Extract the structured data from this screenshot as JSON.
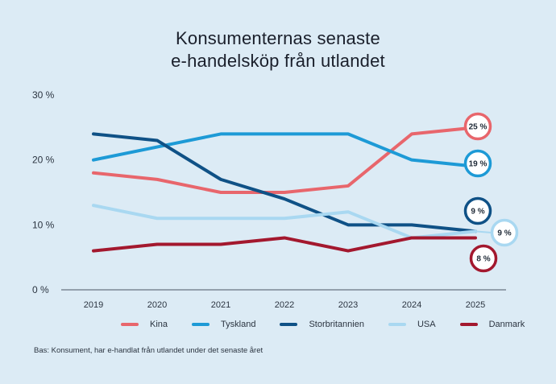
{
  "title_line1": "Konsumenternas senaste",
  "title_line2": "e-handelsköp från utlandet",
  "footnote": "Bas: Konsument, har e-handlat från utlandet under det senaste året",
  "chart_data": {
    "type": "line",
    "title": "Konsumenternas senaste e-handelsköp från utlandet",
    "x": [
      "2019",
      "2020",
      "2021",
      "2022",
      "2023",
      "2024",
      "2025"
    ],
    "y_ticks": [
      "0 %",
      "10 %",
      "20 %",
      "30 %"
    ],
    "ylim": [
      0,
      30
    ],
    "grid": false,
    "legend_position": "bottom",
    "series": [
      {
        "name": "Kina",
        "color": "#e8666c",
        "values": [
          18,
          17,
          15,
          15,
          16,
          24,
          25
        ],
        "end_label": "25 %"
      },
      {
        "name": "Tyskland",
        "color": "#1d9ad6",
        "values": [
          20,
          22,
          24,
          24,
          24,
          20,
          19
        ],
        "end_label": "19 %"
      },
      {
        "name": "Storbritannien",
        "color": "#0f5186",
        "values": [
          24,
          23,
          17,
          14,
          10,
          10,
          9
        ],
        "end_label": "9 %"
      },
      {
        "name": "USA",
        "color": "#a9d8f1",
        "values": [
          13,
          11,
          11,
          11,
          12,
          8,
          9
        ],
        "end_label": "9 %"
      },
      {
        "name": "Danmark",
        "color": "#a3182e",
        "values": [
          6,
          7,
          7,
          8,
          6,
          8,
          8
        ],
        "end_label": "8 %"
      }
    ]
  }
}
